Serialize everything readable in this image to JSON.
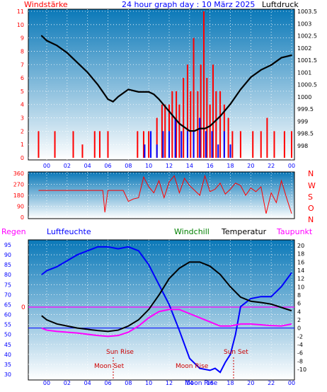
{
  "header": {
    "left_label": "Windstärke",
    "title": "24 hour graph day : 10 März 2025",
    "right_label": "Luftdruck"
  },
  "colors": {
    "bg_top": "#0a78b8",
    "bg_bottom": "#ffffff",
    "wind_red": "#ff0000",
    "gust_blue": "#0000ff",
    "pressure_black": "#000000",
    "humidity_blue": "#0000ff",
    "dewpoint_magenta": "#ff00ff",
    "label_red": "#ff0000",
    "label_blue": "#0000ff",
    "label_green": "#008000",
    "frame": "#000000"
  },
  "x_ticks": [
    "00",
    "02",
    "04",
    "06",
    "08",
    "10",
    "12",
    "14",
    "16",
    "18",
    "20",
    "22",
    "00"
  ],
  "wind_panel": {
    "y_left_ticks": [
      "0",
      "1",
      "2",
      "3",
      "4",
      "5",
      "6",
      "7",
      "8",
      "9",
      "10",
      "11"
    ],
    "y_right_ticks": [
      "998",
      "998.5",
      "999",
      "999.5",
      "1000",
      "1000.5",
      "1001",
      "1001.5",
      "1002",
      "1002.5",
      "1003",
      "1003.5"
    ]
  },
  "dir_panel": {
    "y_ticks": [
      "0",
      "90",
      "180",
      "270",
      "360"
    ],
    "compass": [
      "N",
      "W",
      "S",
      "O",
      "N"
    ]
  },
  "temp_panel": {
    "labels": {
      "regen": "Regen",
      "luftfeuchte": "Luftfeuchte",
      "windchill": "Windchill",
      "temperatur": "Temperatur",
      "taupunkt": "Taupunkt"
    },
    "y_left_ticks": [
      "30",
      "35",
      "40",
      "45",
      "50",
      "55",
      "60",
      "65",
      "70",
      "75",
      "80",
      "85",
      "90",
      "95"
    ],
    "y_right_ticks": [
      "-10",
      "-8",
      "-6",
      "-4",
      "-2",
      "0",
      "2",
      "4",
      "6",
      "8",
      "10",
      "12",
      "14",
      "16",
      "18",
      "20"
    ],
    "rain_zero": "0",
    "annotations": {
      "sun_rise": "Sun Rise",
      "sun_set": "Sun Set",
      "moon_set": "Moon Set",
      "moon_rise_1": "Moon Rise",
      "moon_rise_2": "Moon Rise"
    }
  },
  "chart_data": [
    {
      "type": "line",
      "title": "24 hour graph day : 10 März 2025",
      "panel": "wind_and_pressure",
      "x_unit": "hour",
      "y_left_label": "Windstärke",
      "y_left_lim": [
        0,
        11
      ],
      "y_right_label": "Luftdruck",
      "y_right_lim": [
        997.5,
        1003.5
      ],
      "series": [
        {
          "name": "Luftdruck",
          "x": [
            -0.5,
            0,
            1,
            2,
            3,
            4,
            5,
            5.5,
            6,
            6.5,
            7,
            8,
            9,
            10,
            10.5,
            11,
            12,
            13,
            14,
            14.5,
            15,
            15.5,
            16,
            17,
            18,
            19,
            20,
            21,
            22,
            23,
            24
          ],
          "y": [
            1002.5,
            1002.3,
            1002.1,
            1001.8,
            1001.4,
            1001.0,
            1000.5,
            1000.2,
            999.9,
            999.8,
            1000.0,
            1000.3,
            1000.2,
            1000.2,
            1000.1,
            999.9,
            999.4,
            998.9,
            998.6,
            998.6,
            998.7,
            998.7,
            998.8,
            999.2,
            999.7,
            1000.3,
            1000.8,
            1001.1,
            1001.3,
            1001.6,
            1001.7
          ]
        },
        {
          "name": "Windstärke",
          "x": [
            -0.8,
            0.8,
            2.6,
            3.5,
            4.7,
            5.2,
            6.0,
            8.9,
            9.5,
            10.0,
            10.8,
            11.3,
            11.6,
            12.0,
            12.3,
            12.7,
            13.0,
            13.4,
            13.8,
            14.1,
            14.4,
            14.8,
            15.1,
            15.4,
            15.7,
            16.0,
            16.3,
            16.6,
            17.0,
            17.4,
            17.8,
            18.2,
            19.0,
            20.2,
            21.0,
            21.6,
            22.3,
            23.3,
            24.0
          ],
          "y": [
            2,
            2,
            2,
            1,
            2,
            2,
            2,
            2,
            2,
            2,
            3,
            4,
            4,
            4,
            5,
            5,
            4,
            6,
            7,
            5,
            9,
            5,
            7,
            11,
            6,
            4,
            7,
            5,
            5,
            4,
            3,
            2,
            2,
            2,
            2,
            3,
            2,
            2,
            2
          ]
        },
        {
          "name": "Böen",
          "x": [
            9.6,
            10.2,
            10.8,
            11.4,
            12.0,
            12.6,
            13.2,
            13.8,
            14.4,
            15.0,
            15.6,
            16.2,
            16.8,
            17.4,
            18.0
          ],
          "y": [
            1,
            2,
            1,
            2,
            2,
            3,
            2,
            2,
            2,
            3,
            2,
            2,
            1,
            2,
            1
          ]
        }
      ]
    },
    {
      "type": "line",
      "panel": "wind_direction",
      "x_unit": "hour",
      "y_lim": [
        0,
        360
      ],
      "series": [
        {
          "name": "Windrichtung",
          "x": [
            -0.8,
            0,
            1,
            2,
            3,
            4,
            5,
            5.5,
            5.7,
            6,
            6.5,
            7,
            7.5,
            8,
            8.5,
            9,
            9.5,
            10,
            10.5,
            11,
            11.5,
            12,
            12.5,
            13,
            13.5,
            14,
            14.5,
            15,
            15.5,
            16,
            16.5,
            17,
            17.5,
            18,
            18.5,
            19,
            19.5,
            20,
            20.5,
            21,
            21.5,
            22,
            22.5,
            23,
            23.5,
            24
          ],
          "y": [
            220,
            220,
            220,
            220,
            220,
            220,
            220,
            220,
            40,
            220,
            220,
            220,
            220,
            130,
            150,
            160,
            330,
            250,
            200,
            300,
            160,
            290,
            340,
            200,
            320,
            260,
            220,
            180,
            340,
            210,
            230,
            280,
            190,
            230,
            280,
            260,
            180,
            240,
            210,
            250,
            30,
            200,
            120,
            300,
            160,
            30
          ]
        }
      ]
    },
    {
      "type": "line",
      "panel": "temperature_humidity",
      "x_unit": "hour",
      "y_left_label": "Luftfeuchte",
      "y_left_lim": [
        30,
        95
      ],
      "y_right_lim": [
        -10,
        20
      ],
      "series": [
        {
          "name": "Luftfeuchte",
          "x": [
            -0.5,
            0,
            1,
            2,
            3,
            4,
            5,
            6,
            7,
            8,
            9,
            10,
            11,
            12,
            13,
            14,
            15,
            16,
            16.5,
            17,
            17.5,
            18,
            18.5,
            19,
            20,
            21,
            22,
            23,
            24
          ],
          "y": [
            80,
            82,
            84,
            87,
            90,
            92,
            94,
            94,
            93,
            94,
            92,
            85,
            75,
            65,
            52,
            38,
            33,
            32,
            33,
            31,
            36,
            40,
            50,
            64,
            68,
            69,
            69,
            74,
            81
          ]
        },
        {
          "name": "Temperatur",
          "x": [
            -0.5,
            0,
            1,
            2,
            3,
            4,
            5,
            6,
            7,
            8,
            9,
            10,
            11,
            12,
            13,
            14,
            15,
            16,
            17,
            18,
            19,
            20,
            21,
            22,
            23,
            24
          ],
          "y": [
            3.0,
            2.0,
            1.0,
            0.5,
            0.0,
            -0.3,
            -0.6,
            -0.8,
            -0.5,
            0.5,
            2.0,
            4.5,
            8.0,
            12.0,
            14.5,
            16.0,
            16.0,
            15.0,
            13.0,
            10.0,
            7.5,
            6.5,
            6.2,
            5.8,
            5.0,
            4.2
          ]
        },
        {
          "name": "Taupunkt",
          "x": [
            -0.5,
            0,
            1,
            2,
            3,
            4,
            5,
            6,
            7,
            8,
            9,
            10,
            11,
            12,
            13,
            14,
            15,
            16,
            17,
            18,
            19,
            20,
            21,
            22,
            23,
            24
          ],
          "y": [
            0.0,
            -0.5,
            -0.8,
            -1.0,
            -1.2,
            -1.5,
            -1.8,
            -2.0,
            -1.8,
            -1.0,
            0.5,
            2.5,
            4.0,
            4.5,
            4.5,
            3.5,
            2.5,
            1.5,
            0.5,
            0.5,
            1.0,
            1.0,
            0.8,
            0.6,
            0.5,
            1.0
          ]
        }
      ]
    }
  ]
}
